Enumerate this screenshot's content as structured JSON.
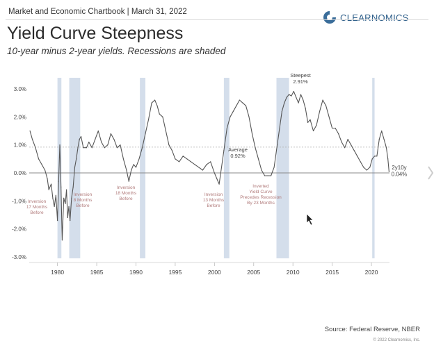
{
  "header": {
    "chartbook_label": "Market and Economic Chartbook | March 31, 2022",
    "logo_text": "CLEARNOMICS",
    "title": "Yield Curve Steepness",
    "subtitle": "10-year minus 2-year yields. Recessions are shaded"
  },
  "footer": {
    "source": "Source: Federal Reserve, NBER",
    "copyright": "© 2022 Clearnomics, Inc."
  },
  "colors": {
    "line": "#555555",
    "recession_shade": "#c9d6e6",
    "average_line": "#aaaaaa",
    "zero_line": "#888888",
    "inversion_text": "#b07a7a",
    "label_text": "#444444"
  },
  "chart_data": {
    "type": "line",
    "title": "Yield Curve Steepness",
    "subtitle": "10-year minus 2-year yields. Recessions are shaded",
    "xlabel": "",
    "ylabel": "",
    "xlim": [
      1976.4,
      2022.3
    ],
    "ylim": [
      -3.0,
      3.0
    ],
    "x_ticks": [
      1980,
      1985,
      1990,
      1995,
      2000,
      2005,
      2010,
      2015,
      2020
    ],
    "x_tick_labels": [
      "1980",
      "1985",
      "1990",
      "1995",
      "2000",
      "2005",
      "2010",
      "2015",
      "2020"
    ],
    "y_ticks": [
      3.0,
      2.0,
      1.0,
      0.0,
      -1.0,
      -2.0,
      -3.0
    ],
    "y_tick_labels": [
      "3.0%",
      "2.0%",
      "1.0%",
      "0.0%",
      "-1.0%",
      "-2.0%",
      "-3.0%"
    ],
    "grid": false,
    "average": 0.92,
    "recessions": [
      [
        1980.0,
        1980.5
      ],
      [
        1981.5,
        1982.9
      ],
      [
        1990.5,
        1991.2
      ],
      [
        2001.2,
        2001.9
      ],
      [
        2007.9,
        2009.5
      ],
      [
        2020.1,
        2020.4
      ]
    ],
    "series": [
      {
        "name": "2y10y",
        "x": [
          1976.5,
          1976.8,
          1977.2,
          1977.6,
          1978.0,
          1978.4,
          1978.7,
          1978.9,
          1979.2,
          1979.4,
          1979.6,
          1979.8,
          1980.0,
          1980.15,
          1980.3,
          1980.45,
          1980.6,
          1980.8,
          1981.0,
          1981.15,
          1981.3,
          1981.45,
          1981.6,
          1981.8,
          1982.0,
          1982.2,
          1982.4,
          1982.6,
          1982.8,
          1983.0,
          1983.3,
          1983.7,
          1984.0,
          1984.4,
          1984.8,
          1985.2,
          1985.6,
          1986.0,
          1986.4,
          1986.8,
          1987.2,
          1987.6,
          1988.0,
          1988.4,
          1988.8,
          1989.1,
          1989.4,
          1989.7,
          1990.0,
          1990.4,
          1990.8,
          1991.2,
          1991.6,
          1992.0,
          1992.4,
          1992.7,
          1993.0,
          1993.4,
          1993.8,
          1994.2,
          1994.6,
          1995.0,
          1995.5,
          1996.0,
          1996.5,
          1997.0,
          1997.5,
          1998.0,
          1998.5,
          1999.0,
          1999.5,
          2000.0,
          2000.3,
          2000.6,
          2000.9,
          2001.2,
          2001.6,
          2002.0,
          2002.4,
          2002.8,
          2003.2,
          2003.6,
          2004.0,
          2004.4,
          2004.8,
          2005.2,
          2005.6,
          2006.0,
          2006.4,
          2006.8,
          2007.2,
          2007.6,
          2008.0,
          2008.3,
          2008.6,
          2008.9,
          2009.2,
          2009.5,
          2009.8,
          2010.1,
          2010.4,
          2010.7,
          2011.0,
          2011.3,
          2011.6,
          2011.9,
          2012.2,
          2012.6,
          2013.0,
          2013.4,
          2013.8,
          2014.2,
          2014.6,
          2015.0,
          2015.4,
          2015.8,
          2016.2,
          2016.6,
          2017.0,
          2017.4,
          2017.8,
          2018.2,
          2018.6,
          2019.0,
          2019.4,
          2019.8,
          2020.1,
          2020.4,
          2020.7,
          2021.0,
          2021.3,
          2021.6,
          2021.9,
          2022.1,
          2022.25
        ],
        "values": [
          1.5,
          1.2,
          0.9,
          0.5,
          0.3,
          0.1,
          -0.2,
          -0.6,
          -0.4,
          -0.9,
          -1.2,
          -0.8,
          -1.7,
          -0.3,
          1.0,
          -0.5,
          -2.4,
          -0.9,
          -1.1,
          -0.6,
          -1.6,
          -1.2,
          -1.7,
          -0.9,
          -0.5,
          0.2,
          0.5,
          0.9,
          1.2,
          1.3,
          0.9,
          0.9,
          1.1,
          0.9,
          1.2,
          1.5,
          1.1,
          0.9,
          1.0,
          1.4,
          1.2,
          0.9,
          1.0,
          0.5,
          0.1,
          -0.3,
          0.1,
          0.3,
          0.2,
          0.5,
          0.9,
          1.4,
          1.9,
          2.5,
          2.6,
          2.4,
          2.1,
          2.0,
          1.5,
          1.0,
          0.8,
          0.5,
          0.4,
          0.6,
          0.5,
          0.4,
          0.3,
          0.2,
          0.1,
          0.3,
          0.4,
          0.0,
          -0.2,
          -0.4,
          0.2,
          0.8,
          1.6,
          2.0,
          2.2,
          2.4,
          2.6,
          2.5,
          2.4,
          2.0,
          1.4,
          0.9,
          0.5,
          0.1,
          -0.1,
          -0.1,
          -0.1,
          0.2,
          1.0,
          1.6,
          2.2,
          2.5,
          2.7,
          2.8,
          2.75,
          2.91,
          2.7,
          2.5,
          2.8,
          2.6,
          2.3,
          1.8,
          1.9,
          1.5,
          1.7,
          2.2,
          2.6,
          2.4,
          2.0,
          1.6,
          1.6,
          1.4,
          1.1,
          0.9,
          1.2,
          1.0,
          0.8,
          0.6,
          0.4,
          0.2,
          0.1,
          0.2,
          0.5,
          0.6,
          0.6,
          1.2,
          1.5,
          1.2,
          0.9,
          0.5,
          0.04
        ]
      }
    ],
    "annotations": [
      {
        "text": [
          "Steepest",
          "2.91%"
        ]
      },
      {
        "text": [
          "Average",
          "0.92%"
        ]
      },
      {
        "text": [
          "2y10y",
          "0.04%"
        ]
      },
      {
        "text": [
          "Inversion",
          "17 Months",
          "Before"
        ]
      },
      {
        "text": [
          "Inversion",
          "8 Months",
          "Before"
        ]
      },
      {
        "text": [
          "Inversion",
          "18 Months",
          "Before"
        ]
      },
      {
        "text": [
          "Inversion",
          "13 Months",
          "Before"
        ]
      },
      {
        "text": [
          "Inverted",
          "Yield Curve",
          "Precedes Recession",
          "By 23 Months"
        ]
      }
    ]
  }
}
